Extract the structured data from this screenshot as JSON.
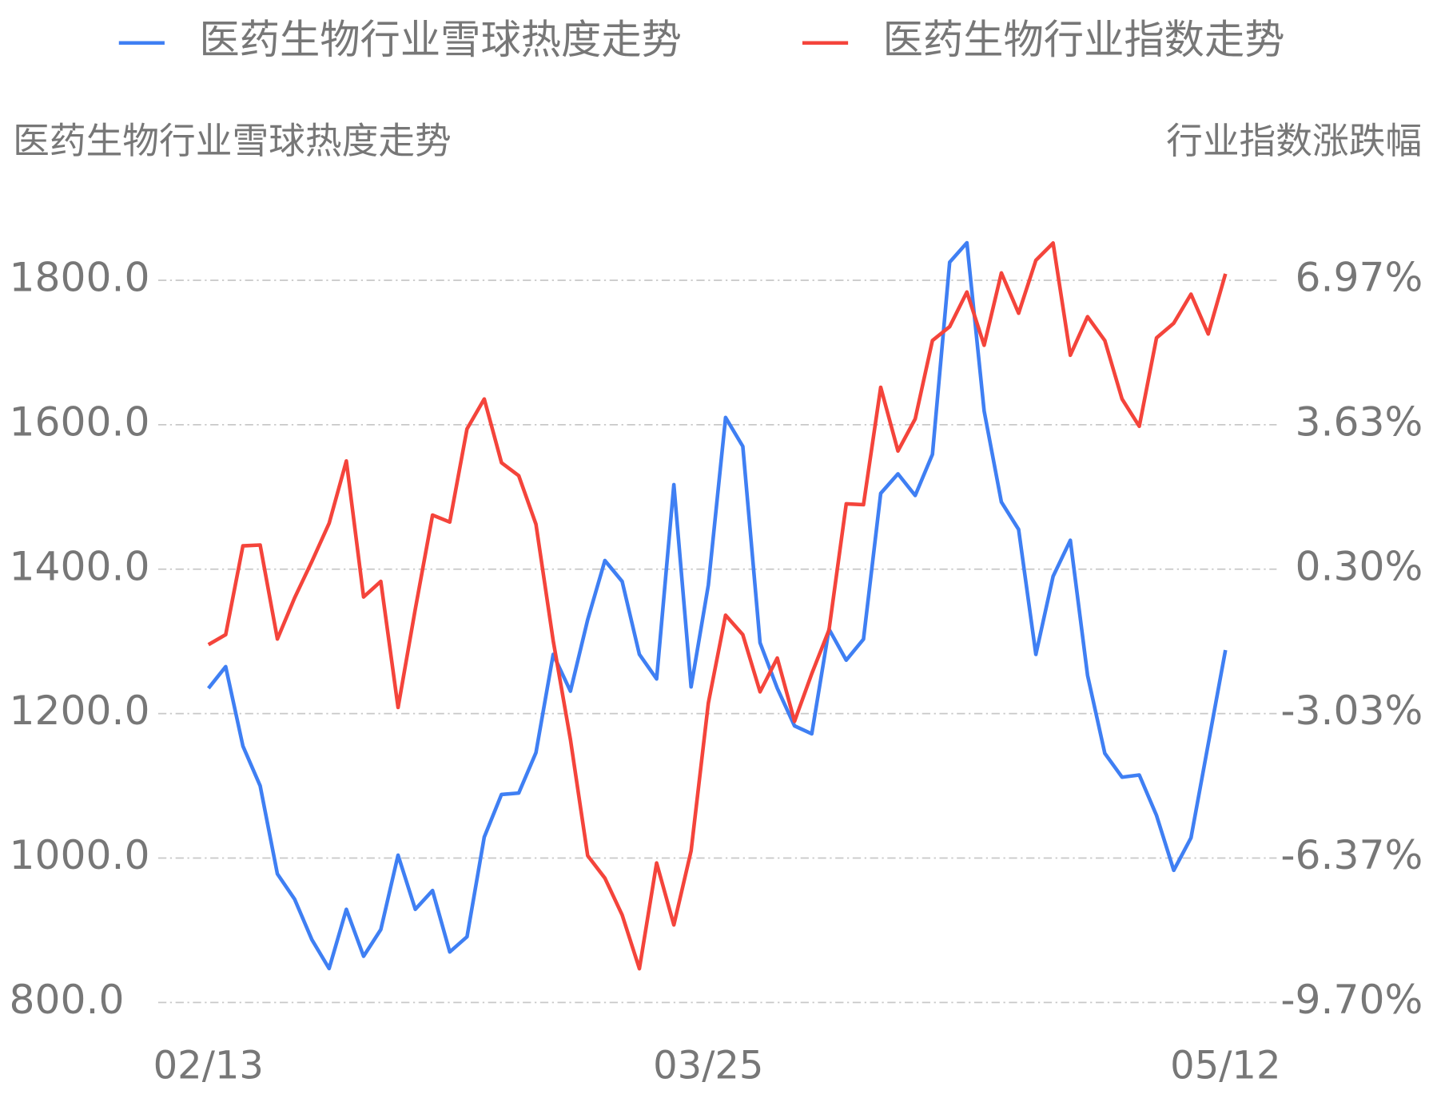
{
  "chart_data": {
    "type": "line",
    "y_axis_title": "医药生物行业雪球热度走势",
    "y2_axis_title": "行业指数涨跌幅",
    "categories": [
      "02/13",
      null,
      null,
      null,
      null,
      null,
      null,
      null,
      null,
      null,
      null,
      null,
      null,
      null,
      null,
      null,
      null,
      null,
      null,
      null,
      null,
      null,
      null,
      null,
      null,
      null,
      null,
      null,
      null,
      "03/25",
      null,
      null,
      null,
      null,
      null,
      null,
      null,
      null,
      null,
      null,
      null,
      null,
      null,
      null,
      null,
      null,
      null,
      null,
      null,
      null,
      null,
      null,
      null,
      null,
      null,
      null,
      null,
      null,
      null,
      "05/12"
    ],
    "series": [
      {
        "name": "医药生物行业雪球热度走势",
        "color": "#3f7ff3",
        "axis": "y",
        "values": [
          1235,
          1265,
          1155,
          1100,
          978,
          943,
          887,
          847,
          929,
          864,
          901,
          1004,
          929,
          955,
          870,
          891,
          1029,
          1088,
          1090,
          1146,
          1282,
          1231,
          1330,
          1412,
          1383,
          1282,
          1248,
          1517,
          1237,
          1378,
          1610,
          1570,
          1298,
          1235,
          1183,
          1172,
          1317,
          1274,
          1303,
          1505,
          1532,
          1502,
          1559,
          1825,
          1852,
          1619,
          1493,
          1455,
          1282,
          1390,
          1440,
          1253,
          1145,
          1112,
          1115,
          1059,
          983,
          1028,
          1158,
          1288
        ]
      },
      {
        "name": "医药生物行业指数走势",
        "color": "#f4443b",
        "axis": "y2",
        "values": [
          -1.44,
          -1.21,
          0.84,
          0.86,
          -1.31,
          -0.36,
          0.48,
          1.36,
          2.8,
          -0.34,
          0.02,
          -2.89,
          -0.62,
          1.55,
          1.39,
          3.54,
          4.23,
          2.76,
          2.46,
          1.34,
          -1.35,
          -3.63,
          -6.31,
          -6.83,
          -7.68,
          -8.92,
          -6.48,
          -7.91,
          -6.2,
          -2.79,
          -0.76,
          -1.21,
          -2.53,
          -1.75,
          -3.21,
          -2.11,
          -1.1,
          1.81,
          1.79,
          4.5,
          3.03,
          3.77,
          5.58,
          5.9,
          6.7,
          5.47,
          7.14,
          6.21,
          7.43,
          7.83,
          5.24,
          6.13,
          5.58,
          4.23,
          3.6,
          5.64,
          5.98,
          6.65,
          5.73,
          7.12
        ]
      }
    ],
    "ylim": [
      800,
      1800
    ],
    "yticks": [
      {
        "value": 800,
        "label": "800.0"
      },
      {
        "value": 1000,
        "label": "1000.0"
      },
      {
        "value": 1200,
        "label": "1200.0"
      },
      {
        "value": 1400,
        "label": "1400.0"
      },
      {
        "value": 1600,
        "label": "1600.0"
      },
      {
        "value": 1800,
        "label": "1800.0"
      }
    ],
    "y2lim": [
      -9.7,
      6.97
    ],
    "y2ticks": [
      {
        "value": -9.7,
        "label": "-9.70%"
      },
      {
        "value": -6.37,
        "label": "-6.37%"
      },
      {
        "value": -3.03,
        "label": "-3.03%"
      },
      {
        "value": 0.3,
        "label": "0.30%"
      },
      {
        "value": 3.63,
        "label": "3.63%"
      },
      {
        "value": 6.97,
        "label": "6.97%"
      }
    ],
    "grid": true,
    "legend": "top"
  }
}
